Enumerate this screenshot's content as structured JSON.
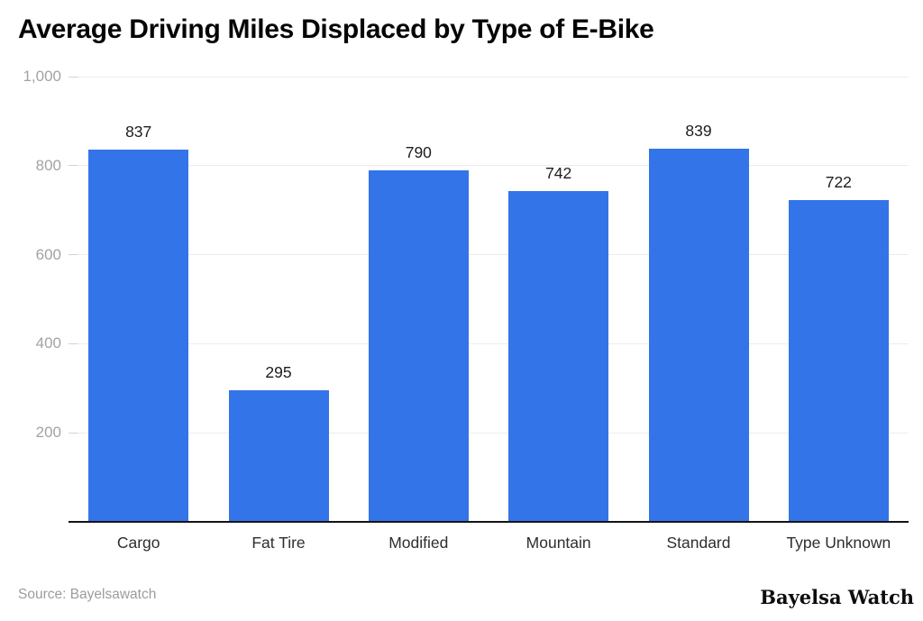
{
  "title": "Average Driving Miles Displaced by Type of E-Bike",
  "footer": {
    "source": "Source: Bayelsawatch",
    "brand": "Bayelsa Watch"
  },
  "colors": {
    "bar": "#3374E8",
    "gridline": "#ececec",
    "baseline": "#141414",
    "ytick_text": "#a3a3a3",
    "value_text": "#1d1d1d",
    "category_text": "#2e2e2e"
  },
  "chart_data": {
    "type": "bar",
    "title": "Average Driving Miles Displaced by Type of E-Bike",
    "categories": [
      "Cargo",
      "Fat Tire",
      "Modified",
      "Mountain",
      "Standard",
      "Type Unknown"
    ],
    "values": [
      837,
      295,
      790,
      742,
      839,
      722
    ],
    "value_labels": [
      "837",
      "295",
      "790",
      "742",
      "839",
      "722"
    ],
    "xlabel": "",
    "ylabel": "",
    "ylim": [
      0,
      1000
    ],
    "yticks": [
      200,
      400,
      600,
      800,
      1000
    ],
    "ytick_labels": [
      "200",
      "400",
      "600",
      "800",
      "1,000"
    ],
    "grid": true,
    "legend": "none",
    "source": "Source: Bayelsawatch",
    "brand": "Bayelsa Watch"
  }
}
